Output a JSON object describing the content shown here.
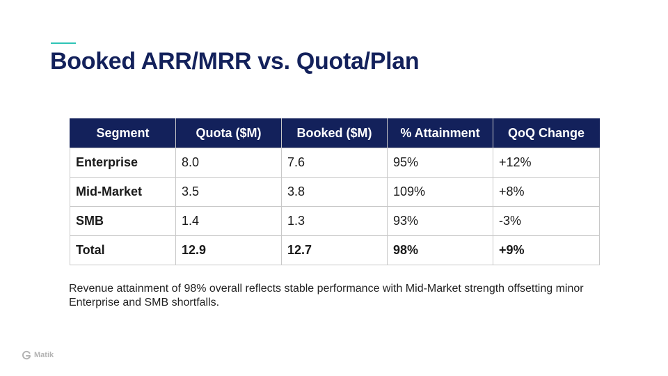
{
  "slide": {
    "title": "Booked ARR/MRR vs. Quota/Plan",
    "accent_color": "#2ec4b6",
    "title_color": "#13215b"
  },
  "table": {
    "headers": [
      "Segment",
      "Quota ($M)",
      "Booked ($M)",
      "% Attainment",
      "QoQ Change"
    ],
    "rows": [
      {
        "segment": "Enterprise",
        "quota": "8.0",
        "booked": "7.6",
        "attainment": "95%",
        "qoq": "+12%"
      },
      {
        "segment": "Mid-Market",
        "quota": "3.5",
        "booked": "3.8",
        "attainment": "109%",
        "qoq": "+8%"
      },
      {
        "segment": "SMB",
        "quota": "1.4",
        "booked": "1.3",
        "attainment": "93%",
        "qoq": "-3%"
      },
      {
        "segment": "Total",
        "quota": "12.9",
        "booked": "12.7",
        "attainment": "98%",
        "qoq": "+9%"
      }
    ],
    "header_bg": "#13215b",
    "positive_color": "#3a8a2a",
    "negative_color": "#d0202a"
  },
  "summary": "Revenue attainment of 98% overall reflects stable performance with Mid-Market strength offsetting minor Enterprise and SMB shortfalls.",
  "footer": {
    "logo_icon": "matik-logo-icon",
    "logo_text": "Matik"
  }
}
